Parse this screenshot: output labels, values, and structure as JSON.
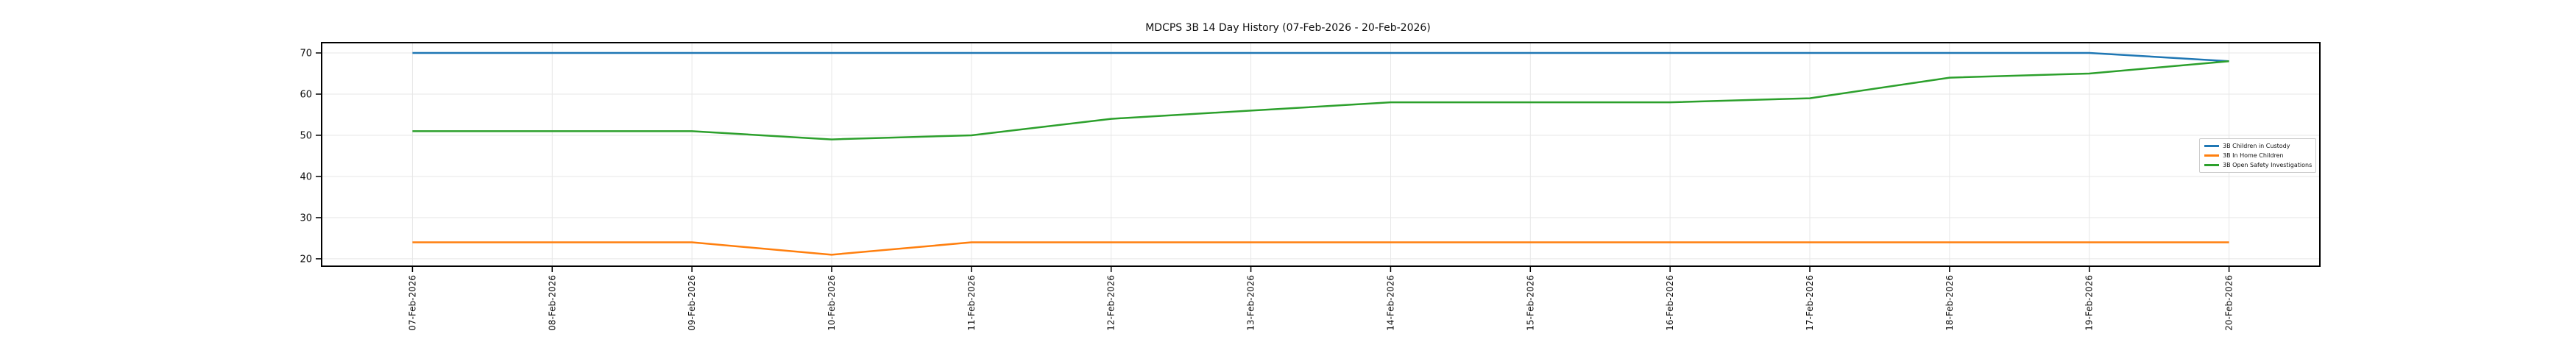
{
  "chart_data": {
    "type": "line",
    "title": "MDCPS 3B 14 Day History (07-Feb-2026 - 20-Feb-2026)",
    "xlabel": "",
    "ylabel": "",
    "categories": [
      "07-Feb-2026",
      "08-Feb-2026",
      "09-Feb-2026",
      "10-Feb-2026",
      "11-Feb-2026",
      "12-Feb-2026",
      "13-Feb-2026",
      "14-Feb-2026",
      "15-Feb-2026",
      "16-Feb-2026",
      "17-Feb-2026",
      "18-Feb-2026",
      "19-Feb-2026",
      "20-Feb-2026"
    ],
    "series": [
      {
        "name": "3B Children in Custody",
        "color": "#1f77b4",
        "values": [
          70,
          70,
          70,
          70,
          70,
          70,
          70,
          70,
          70,
          70,
          70,
          70,
          70,
          68
        ]
      },
      {
        "name": "3B In Home Children",
        "color": "#ff7f0e",
        "values": [
          24,
          24,
          24,
          21,
          24,
          24,
          24,
          24,
          24,
          24,
          24,
          24,
          24,
          24
        ]
      },
      {
        "name": "3B Open Safety Investigations",
        "color": "#2ca02c",
        "values": [
          51,
          51,
          51,
          49,
          50,
          54,
          56,
          58,
          58,
          58,
          59,
          64,
          65,
          68
        ]
      }
    ],
    "yticks": [
      20,
      30,
      40,
      50,
      60,
      70
    ],
    "ylim": [
      18.2,
      72.5
    ],
    "grid": true,
    "grid_color": "#e7e7e7",
    "axis_color": "#000000",
    "text_color": "#111111",
    "legend_position": "center right"
  }
}
